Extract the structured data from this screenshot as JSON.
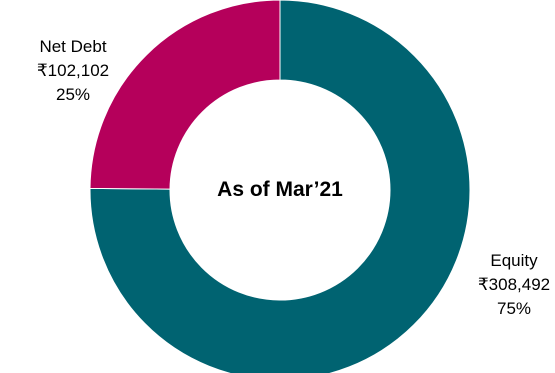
{
  "chart_data": {
    "type": "pie",
    "donut": true,
    "center_label": "As of Mar’21",
    "slices": [
      {
        "name": "Equity",
        "value_text": "₹308,492",
        "value": 308492,
        "percent_text": "75%",
        "percent": 75,
        "color": "#006371"
      },
      {
        "name": "Net Debt",
        "value_text": "₹102,102",
        "value": 102102,
        "percent_text": "25%",
        "percent": 25,
        "color": "#B5005B"
      }
    ],
    "legend": "none"
  }
}
